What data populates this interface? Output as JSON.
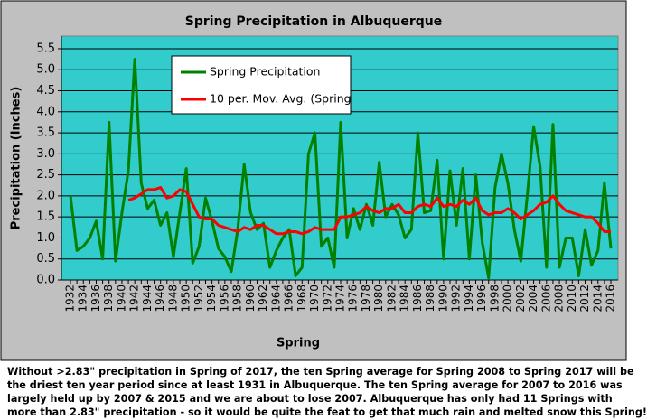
{
  "chart_data": {
    "type": "line",
    "title": "Spring Precipitation in Albuquerque",
    "x_label": "Spring",
    "y_label": "Precipitation (Inches)",
    "categories": [
      "1932",
      null,
      "1934",
      null,
      "1936",
      null,
      "1938",
      null,
      "1940",
      null,
      "1942",
      null,
      "1944",
      null,
      "1946",
      null,
      "1948",
      null,
      "1950",
      null,
      "1952",
      null,
      "1954",
      null,
      "1956",
      null,
      "1958",
      null,
      "1960",
      null,
      "1962",
      null,
      "1964",
      null,
      "1966",
      null,
      "1968",
      null,
      "1970",
      null,
      "1972",
      null,
      "1974",
      null,
      "1976",
      null,
      "1978",
      null,
      "1980",
      null,
      "1982",
      null,
      "1984",
      null,
      "1986",
      null,
      "1988",
      null,
      "1990",
      null,
      "1992",
      null,
      "1994",
      null,
      "1996",
      null,
      "1998",
      null,
      "2000",
      null,
      "2002",
      null,
      "2004",
      null,
      "2006",
      null,
      "2008",
      null,
      "2010",
      null,
      "2012",
      null,
      "2014",
      null,
      "2016"
    ],
    "series": [
      {
        "name": "Spring Precipitation",
        "color": "#008000",
        "values": [
          2.0,
          0.7,
          0.8,
          1.0,
          1.4,
          0.5,
          3.75,
          0.45,
          1.6,
          2.6,
          5.25,
          2.3,
          1.7,
          1.9,
          1.3,
          1.6,
          0.55,
          1.6,
          2.65,
          0.4,
          0.8,
          1.95,
          1.4,
          0.75,
          0.55,
          0.2,
          1.2,
          2.75,
          1.6,
          1.2,
          1.35,
          0.3,
          0.7,
          1.0,
          1.2,
          0.1,
          0.3,
          3.0,
          3.5,
          0.8,
          1.0,
          0.3,
          3.75,
          1.0,
          1.7,
          1.2,
          1.8,
          1.3,
          2.8,
          1.5,
          1.8,
          1.55,
          1.0,
          1.2,
          3.5,
          1.6,
          1.65,
          2.85,
          0.5,
          2.6,
          1.3,
          2.65,
          0.5,
          2.5,
          0.9,
          0.05,
          2.2,
          3.0,
          2.3,
          1.2,
          0.45,
          2.0,
          3.65,
          2.7,
          0.3,
          3.7,
          0.3,
          1.0,
          1.0,
          0.1,
          1.2,
          0.35,
          0.7,
          2.3,
          0.75
        ]
      },
      {
        "name": "10 per. Mov. Avg. (Spring",
        "color": "#ff0000",
        "values": [
          null,
          null,
          null,
          null,
          null,
          null,
          null,
          null,
          null,
          1.9,
          1.95,
          2.05,
          2.15,
          2.15,
          2.2,
          1.95,
          2.0,
          2.15,
          2.1,
          1.8,
          1.5,
          1.45,
          1.45,
          1.3,
          1.25,
          1.2,
          1.15,
          1.25,
          1.2,
          1.3,
          1.3,
          1.2,
          1.1,
          1.1,
          1.15,
          1.15,
          1.1,
          1.15,
          1.25,
          1.2,
          1.2,
          1.2,
          1.5,
          1.5,
          1.55,
          1.6,
          1.75,
          1.65,
          1.6,
          1.7,
          1.7,
          1.8,
          1.6,
          1.6,
          1.75,
          1.8,
          1.75,
          1.95,
          1.75,
          1.8,
          1.75,
          1.9,
          1.8,
          1.95,
          1.65,
          1.55,
          1.6,
          1.6,
          1.7,
          1.6,
          1.45,
          1.55,
          1.65,
          1.8,
          1.85,
          2.0,
          1.8,
          1.65,
          1.6,
          1.55,
          1.5,
          1.5,
          1.35,
          1.15,
          1.15
        ]
      }
    ],
    "ylim": [
      0,
      5.8
    ],
    "yticks": [
      {
        "value": 0,
        "label": "0.0"
      },
      {
        "value": 0.5,
        "label": "0.5"
      },
      {
        "value": 1,
        "label": "1.0"
      },
      {
        "value": 1.5,
        "label": "1.5"
      },
      {
        "value": 2,
        "label": "2.0"
      },
      {
        "value": 2.5,
        "label": "2.5"
      },
      {
        "value": 3,
        "label": "3.0"
      },
      {
        "value": 3.5,
        "label": "3.5"
      },
      {
        "value": 4,
        "label": "4.0"
      },
      {
        "value": 4.5,
        "label": "4.5"
      },
      {
        "value": 5,
        "label": "5.0"
      },
      {
        "value": 5.5,
        "label": "5.5"
      }
    ],
    "grid": true,
    "legend": "top-left"
  },
  "caption": [
    "Without >2.83\" precipitation in Spring of 2017, the ten Spring average for Spring 2008 to Spring 2017 will be",
    "the driest ten year period since at least 1931 in Albuquerque. The ten Spring average for 2007 to 2016 was",
    "largely held up by 2007 & 2015  and we are about to lose 2007. Albuquerque has only had 11 Springs with",
    " more than 2.83\" precipitation - so it would be quite the feat to get that much rain and melted snow this Spring!"
  ]
}
